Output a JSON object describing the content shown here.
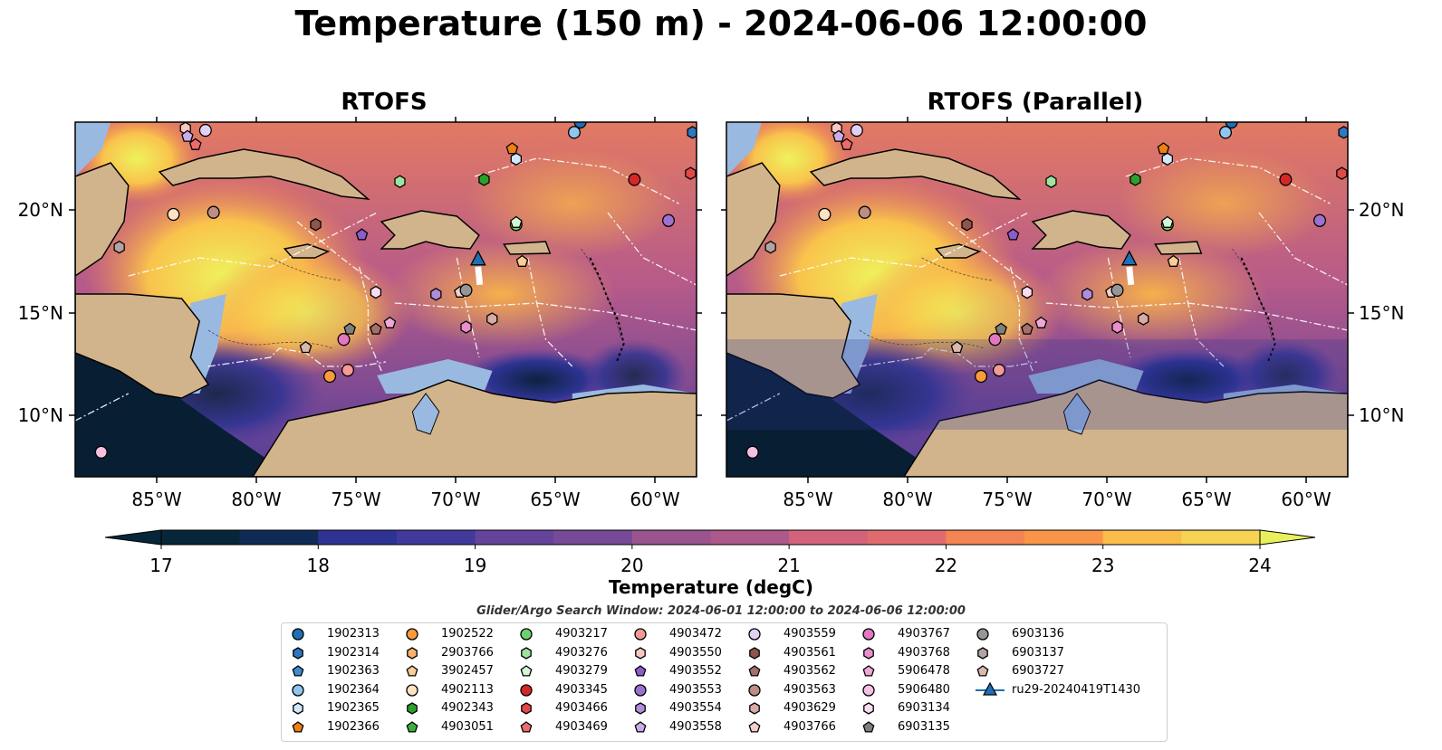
{
  "title": "Temperature (150 m) - 2024-06-06 12:00:00",
  "panels": [
    {
      "title": "RTOFS"
    },
    {
      "title": "RTOFS (Parallel)"
    }
  ],
  "lat_ticks": [
    "20°N",
    "15°N",
    "10°N"
  ],
  "lon_ticks": [
    "85°W",
    "80°W",
    "75°W",
    "70°W",
    "65°W",
    "60°W"
  ],
  "colorbar": {
    "label": "Temperature (degC)",
    "min": 17,
    "max": 24,
    "levels_step": 0.5,
    "ticks": [
      "17",
      "18",
      "19",
      "20",
      "21",
      "22",
      "23",
      "24"
    ],
    "extend": "both",
    "colormap": "thermal",
    "colors": [
      "#06263a",
      "#0f2b55",
      "#1d2e78",
      "#2e3393",
      "#413a9a",
      "#533f9c",
      "#64449a",
      "#764a97",
      "#885094",
      "#9a5490",
      "#ad598b",
      "#c05e84",
      "#d3637b",
      "#e06b6f",
      "#ec7661",
      "#f48453",
      "#f99548",
      "#fca845",
      "#fbbd49",
      "#f6d452",
      "#e8f05b"
    ]
  },
  "chart_data": {
    "type": "heatmap",
    "variable": "Temperature",
    "depth": "150 m",
    "time": "2024-06-06 12:00:00",
    "units": "degC",
    "range": [
      17,
      24
    ],
    "lon_range": [
      -89,
      -58
    ],
    "lat_range": [
      7,
      24.3
    ],
    "panels": [
      "RTOFS",
      "RTOFS (Parallel)"
    ],
    "observations": [
      {
        "id": "1902313",
        "lon": -63.8,
        "lat": 24.3
      },
      {
        "id": "1902314",
        "lon": -58.2,
        "lat": 23.8
      },
      {
        "id": "1902364",
        "lon": -64.1,
        "lat": 23.8
      },
      {
        "id": "1902365",
        "lon": -67.0,
        "lat": 22.5
      },
      {
        "id": "1902366",
        "lon": -67.2,
        "lat": 23.0
      },
      {
        "id": "1902522",
        "lon": -76.3,
        "lat": 11.9
      },
      {
        "id": "3902457",
        "lon": -66.7,
        "lat": 17.5
      },
      {
        "id": "4902113",
        "lon": -84.1,
        "lat": 19.8
      },
      {
        "id": "4902343",
        "lon": -68.6,
        "lat": 21.5
      },
      {
        "id": "4903217",
        "lon": -67.0,
        "lat": 19.3
      },
      {
        "id": "4903276",
        "lon": -72.8,
        "lat": 21.4
      },
      {
        "id": "4903279",
        "lon": -67.0,
        "lat": 19.4
      },
      {
        "id": "4903345",
        "lon": -61.1,
        "lat": 21.5
      },
      {
        "id": "4903466",
        "lon": -58.3,
        "lat": 21.8
      },
      {
        "id": "4903469",
        "lon": -83.0,
        "lat": 23.2
      },
      {
        "id": "4903472",
        "lon": -75.4,
        "lat": 12.2
      },
      {
        "id": "4903550",
        "lon": -83.5,
        "lat": 24.0
      },
      {
        "id": "4903552",
        "lon": -74.7,
        "lat": 18.8
      },
      {
        "id": "4903553",
        "lon": -59.4,
        "lat": 19.5
      },
      {
        "id": "4903554",
        "lon": -71.0,
        "lat": 15.9
      },
      {
        "id": "4903558",
        "lon": -83.4,
        "lat": 23.6
      },
      {
        "id": "4903559",
        "lon": -82.5,
        "lat": 23.9
      },
      {
        "id": "4903561",
        "lon": -77.0,
        "lat": 19.3
      },
      {
        "id": "4903562",
        "lon": -74.0,
        "lat": 14.2
      },
      {
        "id": "4903563",
        "lon": -82.1,
        "lat": 19.9
      },
      {
        "id": "4903629",
        "lon": -68.2,
        "lat": 14.7
      },
      {
        "id": "4903766",
        "lon": -69.8,
        "lat": 16.0
      },
      {
        "id": "4903767",
        "lon": -75.6,
        "lat": 13.7
      },
      {
        "id": "4903768",
        "lon": -69.5,
        "lat": 14.3
      },
      {
        "id": "5906478",
        "lon": -73.3,
        "lat": 14.5
      },
      {
        "id": "5906480",
        "lon": -87.7,
        "lat": 8.2
      },
      {
        "id": "6903134",
        "lon": -74.0,
        "lat": 16.0
      },
      {
        "id": "6903135",
        "lon": -75.3,
        "lat": 14.2
      },
      {
        "id": "6903136",
        "lon": -69.5,
        "lat": 16.1
      },
      {
        "id": "6903137",
        "lon": -86.8,
        "lat": 18.2
      },
      {
        "id": "6903727",
        "lon": -77.5,
        "lat": 13.3
      },
      {
        "id": "ru29-20240419T1430",
        "lon": -68.9,
        "lat": 17.6
      }
    ]
  },
  "search_window": "Glider/Argo Search Window: 2024-06-01 12:00:00 to 2024-06-06 12:00:00",
  "legend": [
    {
      "label": "1902313",
      "marker": "circle",
      "color": "#1f6fb4"
    },
    {
      "label": "1902314",
      "marker": "hexagon",
      "color": "#2f79c0"
    },
    {
      "label": "1902363",
      "marker": "pentagon",
      "color": "#3f8ad1"
    },
    {
      "label": "1902364",
      "marker": "circle",
      "color": "#90c6ee"
    },
    {
      "label": "1902365",
      "marker": "hexagon",
      "color": "#cfe8fb"
    },
    {
      "label": "1902366",
      "marker": "pentagon",
      "color": "#f07f12"
    },
    {
      "label": "1902522",
      "marker": "circle",
      "color": "#fa9b3c"
    },
    {
      "label": "2903766",
      "marker": "hexagon",
      "color": "#fbb26c"
    },
    {
      "label": "3902457",
      "marker": "pentagon",
      "color": "#fdcd96"
    },
    {
      "label": "4902113",
      "marker": "circle",
      "color": "#fde2c3"
    },
    {
      "label": "4902343",
      "marker": "hexagon",
      "color": "#2ca02c"
    },
    {
      "label": "4903051",
      "marker": "pentagon",
      "color": "#3cae3c"
    },
    {
      "label": "4903217",
      "marker": "circle",
      "color": "#6fd06f"
    },
    {
      "label": "4903276",
      "marker": "hexagon",
      "color": "#9fe39f"
    },
    {
      "label": "4903279",
      "marker": "pentagon",
      "color": "#d4f6d4"
    },
    {
      "label": "4903345",
      "marker": "circle",
      "color": "#d62728"
    },
    {
      "label": "4903466",
      "marker": "hexagon",
      "color": "#e34848"
    },
    {
      "label": "4903469",
      "marker": "pentagon",
      "color": "#ec6c6c"
    },
    {
      "label": "4903472",
      "marker": "circle",
      "color": "#f59a94"
    },
    {
      "label": "4903550",
      "marker": "hexagon",
      "color": "#fbc7c2"
    },
    {
      "label": "4903552",
      "marker": "pentagon",
      "color": "#8c5cc8"
    },
    {
      "label": "4903553",
      "marker": "circle",
      "color": "#9b72d0"
    },
    {
      "label": "4903554",
      "marker": "hexagon",
      "color": "#b08ddb"
    },
    {
      "label": "4903558",
      "marker": "pentagon",
      "color": "#c8aee8"
    },
    {
      "label": "4903559",
      "marker": "circle",
      "color": "#e2d1f4"
    },
    {
      "label": "4903561",
      "marker": "hexagon",
      "color": "#8c564b"
    },
    {
      "label": "4903562",
      "marker": "pentagon",
      "color": "#a5706a"
    },
    {
      "label": "4903563",
      "marker": "circle",
      "color": "#bd8d86"
    },
    {
      "label": "4903629",
      "marker": "hexagon",
      "color": "#d8aba5"
    },
    {
      "label": "4903766",
      "marker": "pentagon",
      "color": "#f1d0cb"
    },
    {
      "label": "4903767",
      "marker": "circle",
      "color": "#e377c2"
    },
    {
      "label": "4903768",
      "marker": "hexagon",
      "color": "#ea8ecd"
    },
    {
      "label": "5906478",
      "marker": "pentagon",
      "color": "#f0a7d8"
    },
    {
      "label": "5906480",
      "marker": "circle",
      "color": "#f5c1e3"
    },
    {
      "label": "6903134",
      "marker": "hexagon",
      "color": "#fadcef"
    },
    {
      "label": "6903135",
      "marker": "pentagon",
      "color": "#7f7f7f"
    },
    {
      "label": "6903136",
      "marker": "circle",
      "color": "#969696"
    },
    {
      "label": "6903137",
      "marker": "hexagon",
      "color": "#b0a5a3"
    },
    {
      "label": "6903727",
      "marker": "pentagon",
      "color": "#d9b8ad"
    },
    {
      "label": "ru29-20240419T1430",
      "marker": "triangle-line",
      "color": "#1f6fb4"
    }
  ]
}
